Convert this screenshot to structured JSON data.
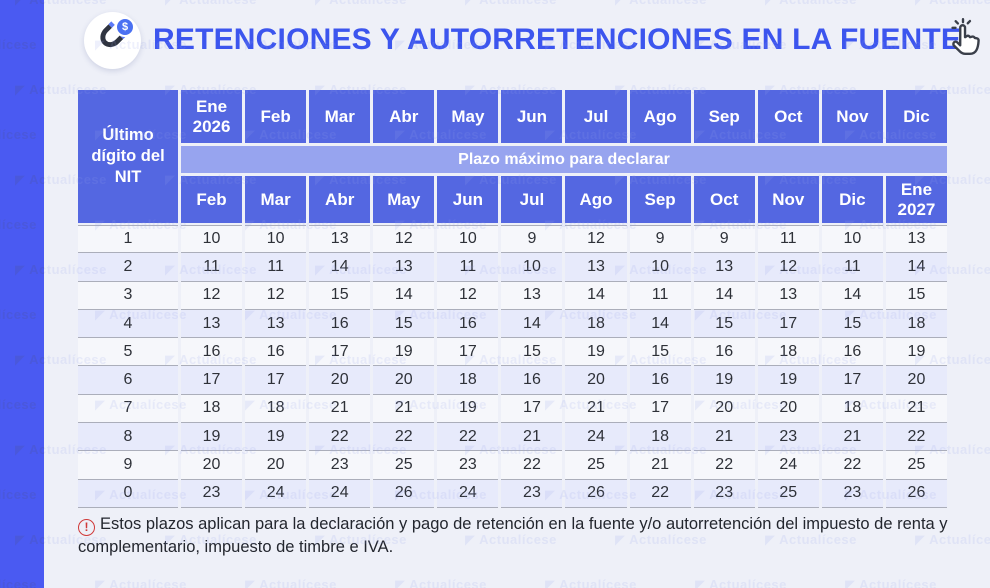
{
  "header": {
    "title": "RETENCIONES Y AUTORRETENCIONES EN LA FUENTE",
    "icons": {
      "magnet_icon": "magnet-attracting-coin",
      "coin_symbol": "$",
      "cursor_icon": "tap-hand-cursor"
    }
  },
  "table": {
    "corner_label": "Último dígito del NIT",
    "band_label": "Plazo máximo para declarar",
    "top_months": [
      "Ene 2026",
      "Feb",
      "Mar",
      "Abr",
      "May",
      "Jun",
      "Jul",
      "Ago",
      "Sep",
      "Oct",
      "Nov",
      "Dic"
    ],
    "bottom_months": [
      "Feb",
      "Mar",
      "Abr",
      "May",
      "Jun",
      "Jul",
      "Ago",
      "Sep",
      "Oct",
      "Nov",
      "Dic",
      "Ene 2027"
    ],
    "rows": [
      {
        "digit": "1",
        "values": [
          10,
          10,
          13,
          12,
          10,
          9,
          12,
          9,
          9,
          11,
          10,
          13
        ]
      },
      {
        "digit": "2",
        "values": [
          11,
          11,
          14,
          13,
          11,
          10,
          13,
          10,
          13,
          12,
          11,
          14
        ]
      },
      {
        "digit": "3",
        "values": [
          12,
          12,
          15,
          14,
          12,
          13,
          14,
          11,
          14,
          13,
          14,
          15
        ]
      },
      {
        "digit": "4",
        "values": [
          13,
          13,
          16,
          15,
          16,
          14,
          18,
          14,
          15,
          17,
          15,
          18
        ]
      },
      {
        "digit": "5",
        "values": [
          16,
          16,
          17,
          19,
          17,
          15,
          19,
          15,
          16,
          18,
          16,
          19
        ]
      },
      {
        "digit": "6",
        "values": [
          17,
          17,
          20,
          20,
          18,
          16,
          20,
          16,
          19,
          19,
          17,
          20
        ]
      },
      {
        "digit": "7",
        "values": [
          18,
          18,
          21,
          21,
          19,
          17,
          21,
          17,
          20,
          20,
          18,
          21
        ]
      },
      {
        "digit": "8",
        "values": [
          19,
          19,
          22,
          22,
          22,
          21,
          24,
          18,
          21,
          23,
          21,
          22
        ]
      },
      {
        "digit": "9",
        "values": [
          20,
          20,
          23,
          25,
          23,
          22,
          25,
          21,
          22,
          24,
          22,
          25
        ]
      },
      {
        "digit": "0",
        "values": [
          23,
          24,
          24,
          26,
          24,
          23,
          26,
          22,
          23,
          25,
          23,
          26
        ]
      }
    ]
  },
  "note": {
    "alert_symbol": "!",
    "text": "Estos plazos aplican para la declaración y pago de retención en la fuente y/o autorretención del impuesto de renta y complementario, impuesto de timbre e IVA."
  },
  "watermark": {
    "text": "Actualícese"
  },
  "colors": {
    "strip_blue": "#4a5af2",
    "header_blue": "#5467e1",
    "band_blue": "#97a4ef",
    "title_blue": "#3c55ee",
    "row_alt": "#e7eafb",
    "note_red": "#d03a3a"
  }
}
